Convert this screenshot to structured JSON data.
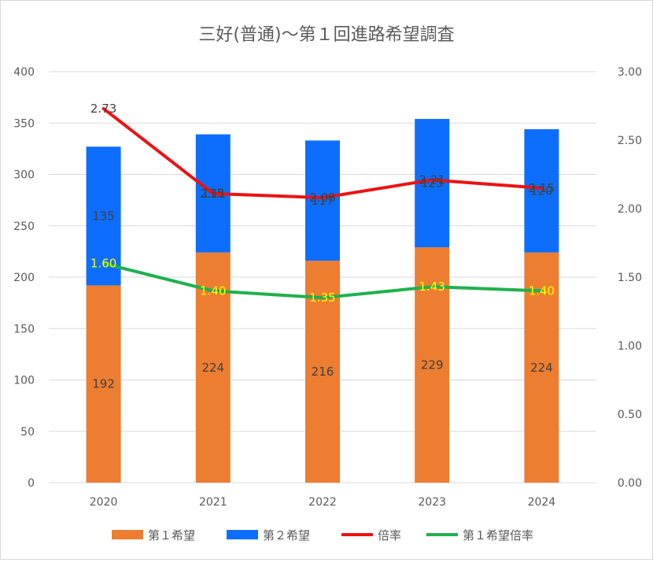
{
  "chart_data": {
    "type": "bar+line",
    "title": "三好(普通)～第１回進路希望調査",
    "categories": [
      "2020",
      "2021",
      "2022",
      "2023",
      "2024"
    ],
    "bar_series": [
      {
        "name": "第１希望",
        "color": "#ED7D31",
        "values": [
          192,
          224,
          216,
          229,
          224
        ]
      },
      {
        "name": "第２希望",
        "color": "#0D6EFD",
        "values": [
          135,
          115,
          117,
          125,
          120
        ]
      }
    ],
    "line_series": [
      {
        "name": "倍率",
        "color": "#EE1111",
        "label_color": "#404040",
        "values": [
          2.73,
          2.11,
          2.08,
          2.21,
          2.15
        ],
        "labels": [
          "2.73",
          "2.11",
          "2.08",
          "2.21",
          "2.15"
        ]
      },
      {
        "name": "第１希望倍率",
        "color": "#1FB04C",
        "label_color": "#FFFF00",
        "values": [
          1.6,
          1.4,
          1.35,
          1.43,
          1.4
        ],
        "labels": [
          "1.60",
          "1.40",
          "1.35",
          "1.43",
          "1.40"
        ]
      }
    ],
    "y_left": {
      "min": 0,
      "max": 400,
      "ticks": [
        "0",
        "50",
        "100",
        "150",
        "200",
        "250",
        "300",
        "350",
        "400"
      ]
    },
    "y_right": {
      "min": 0,
      "max": 3,
      "ticks": [
        "0.00",
        "0.50",
        "1.00",
        "1.50",
        "2.00",
        "2.50",
        "3.00"
      ]
    },
    "grid": true,
    "legend_position": "bottom"
  }
}
